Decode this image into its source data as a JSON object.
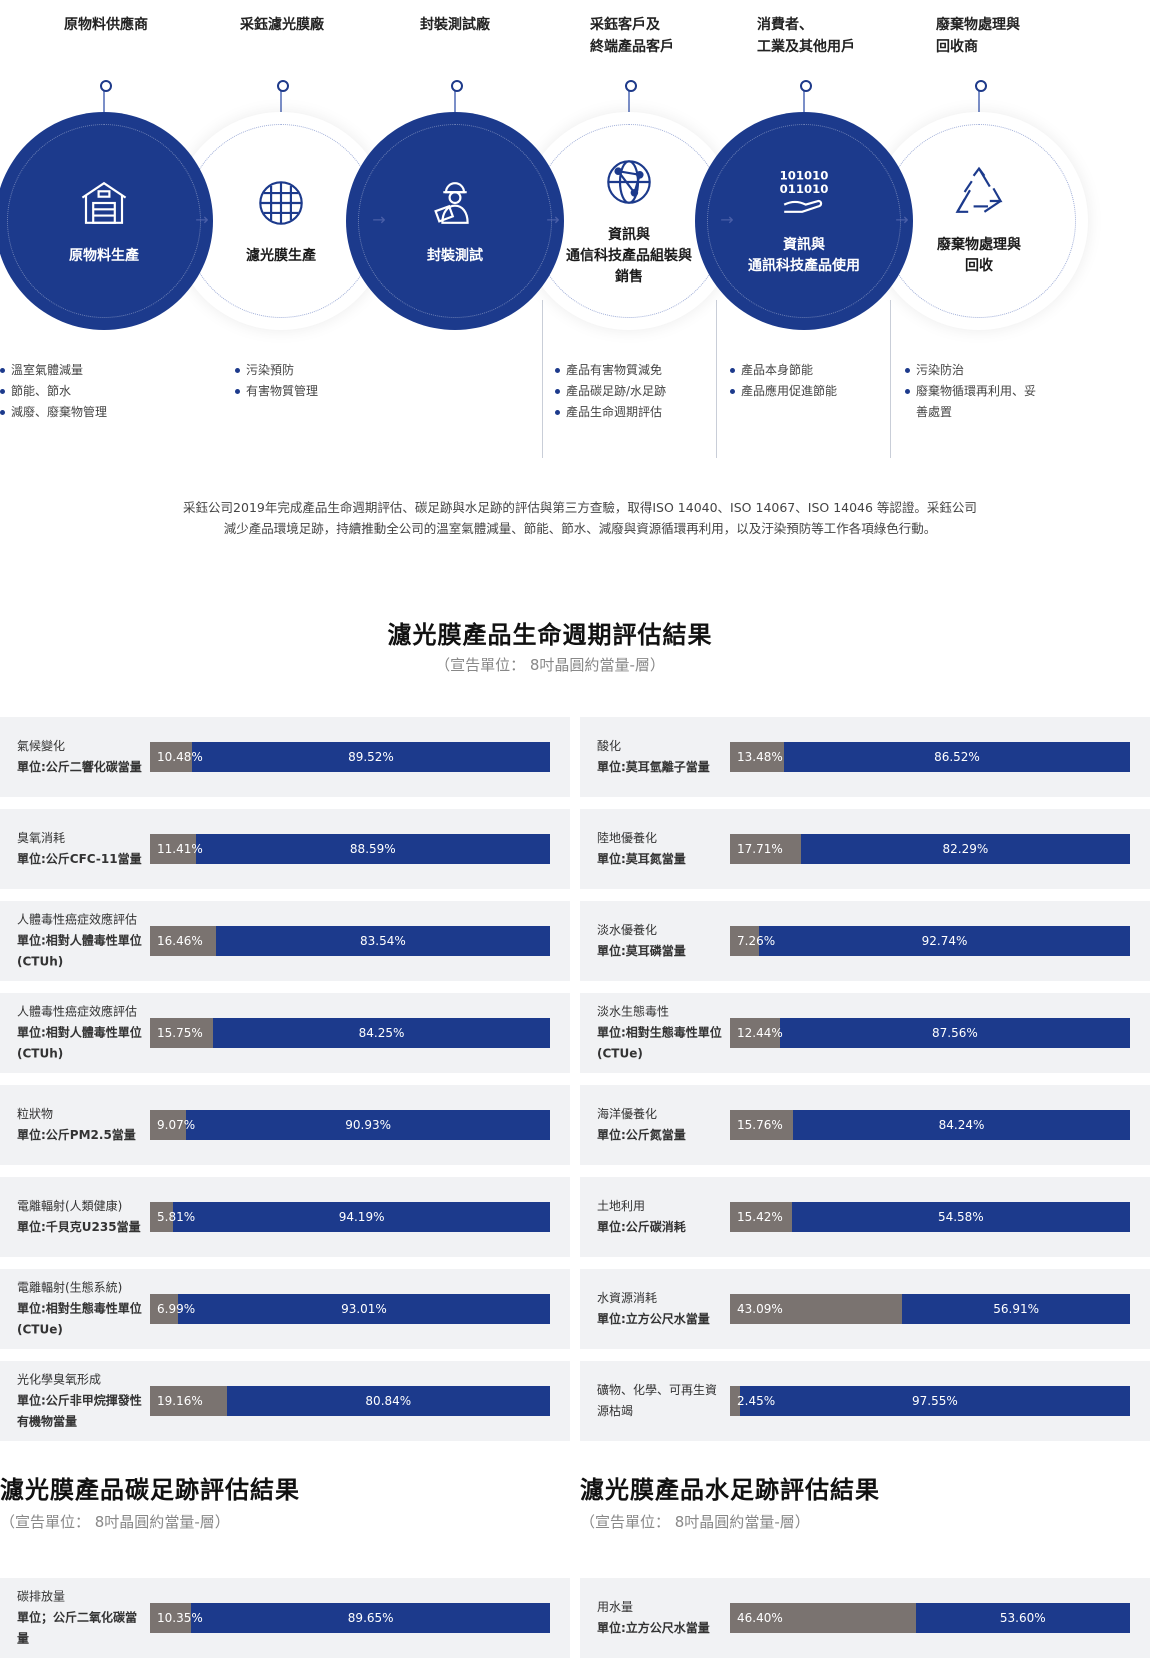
{
  "chain": {
    "stages": [
      {
        "title": "原物料供應商",
        "circle": "原物料生產",
        "style": "dark",
        "icon": "warehouse-icon",
        "bullets": [
          "溫室氣體減量",
          "節能、節水",
          "減廢、廢棄物管理"
        ]
      },
      {
        "title": "采鈺濾光膜廠",
        "circle": "濾光膜生產",
        "style": "light",
        "icon": "grid-globe-icon",
        "bullets": [
          "污染預防",
          "有害物質管理"
        ]
      },
      {
        "title": "封裝測試廠",
        "circle": "封裝測試",
        "style": "dark",
        "icon": "worker-icon",
        "bullets": []
      },
      {
        "title": "采鈺客戶及\n終端產品客戶",
        "circle": "資訊與\n通信科技產品組裝與\n銷售",
        "style": "light",
        "icon": "network-globe-icon",
        "bullets": [
          "產品有害物質減免",
          "產品碳足跡/水足跡",
          "產品生命週期評估"
        ]
      },
      {
        "title": "消費者、\n工業及其他用戶",
        "circle": "資訊與\n通訊科技產品使用",
        "style": "dark",
        "icon": "binary-hand-icon",
        "icon_text": [
          "101010",
          "011010"
        ],
        "bullets": [
          "產品本身節能",
          "產品應用促進節能"
        ]
      },
      {
        "title": "廢棄物處理與\n回收商",
        "circle": "廢棄物處理與\n回收",
        "style": "light",
        "icon": "recycle-icon",
        "bullets": [
          "污染防治",
          "廢棄物循環再利用、妥\n善處置"
        ]
      }
    ],
    "arrow": "→"
  },
  "intro": {
    "line1": "采鈺公司2019年完成產品生命週期評估、碳足跡與水足跡的評估與第三方查驗，取得ISO 14040、ISO 14067、ISO 14046 等認證。采鈺公司",
    "line2": "減少產品環境足跡，持續推動全公司的溫室氣體減量、節能、節水、減廢與資源循環再利用，以及汙染預防等工作各項綠色行動。"
  },
  "lca": {
    "title": "濾光膜產品生命週期評估結果",
    "subtitle": "（宣告單位： 8吋晶圓約當量-層）"
  },
  "carbon": {
    "title": "濾光膜產品碳足跡評估結果",
    "subtitle": "（宣告單位： 8吋晶圓約當量-層）"
  },
  "water": {
    "title": "濾光膜產品水足跡評估結果",
    "subtitle": "（宣告單位： 8吋晶圓約當量-層）"
  },
  "colors": {
    "primary": "#1c3a8c",
    "grey_segment": "#7a7370",
    "card_bg": "#f1f2f4"
  },
  "chart_data": [
    {
      "type": "bar",
      "stacked": true,
      "orientation": "horizontal",
      "title": "濾光膜產品生命週期評估結果",
      "categories_left": [
        {
          "label": "氣候變化",
          "unit": "單位:公斤二響化碳當量",
          "values": [
            10.48,
            89.52
          ]
        },
        {
          "label": "臭氧消耗",
          "unit": "單位:公斤CFC-11當量",
          "values": [
            11.41,
            88.59
          ]
        },
        {
          "label": "人體毒性癌症效應評估",
          "unit": "單位:相對人體毒性單位(CTUh)",
          "values": [
            16.46,
            83.54
          ]
        },
        {
          "label": "人體毒性癌症效應評估",
          "unit": "單位:相對人體毒性單位(CTUh)",
          "values": [
            15.75,
            84.25
          ]
        },
        {
          "label": "粒狀物",
          "unit": "單位:公斤PM2.5當量",
          "values": [
            9.07,
            90.93
          ]
        },
        {
          "label": "電離輻射(人類健康)",
          "unit": "單位:千貝克U235當量",
          "values": [
            5.81,
            94.19
          ]
        },
        {
          "label": "電離輻射(生態系統)",
          "unit": "單位:相對生態毒性單位(CTUe)",
          "values": [
            6.99,
            93.01
          ]
        },
        {
          "label": "光化學臭氧形成",
          "unit": "單位:公斤非甲烷揮發性有機物當量",
          "values": [
            19.16,
            80.84
          ]
        }
      ],
      "categories_right": [
        {
          "label": "酸化",
          "unit": "單位:莫耳氫離子當量",
          "values": [
            13.48,
            86.52
          ]
        },
        {
          "label": "陸地優養化",
          "unit": "單位:莫耳氮當量",
          "values": [
            17.71,
            82.29
          ]
        },
        {
          "label": "淡水優養化",
          "unit": "單位:莫耳磷當量",
          "values": [
            7.26,
            92.74
          ]
        },
        {
          "label": "淡水生態毒性",
          "unit": "單位:相對生態毒性單位(CTUe)",
          "values": [
            12.44,
            87.56
          ]
        },
        {
          "label": "海洋優養化",
          "unit": "單位:公斤氮當量",
          "values": [
            15.76,
            84.24
          ]
        },
        {
          "label": "土地利用",
          "unit": "單位:公斤碳消耗",
          "values": [
            15.42,
            54.58
          ]
        },
        {
          "label": "水資源消耗",
          "unit": "單位:立方公尺水當量",
          "values": [
            43.09,
            56.91
          ]
        },
        {
          "label": "礦物、化學、可再生資源枯竭",
          "unit": "",
          "values": [
            2.45,
            97.55
          ]
        }
      ]
    },
    {
      "type": "bar",
      "stacked": true,
      "orientation": "horizontal",
      "title": "濾光膜產品碳足跡評估結果",
      "categories_left": [
        {
          "label": "碳排放量",
          "unit": "單位；公斤二氧化碳當量",
          "values": [
            10.35,
            89.65
          ]
        }
      ]
    },
    {
      "type": "bar",
      "stacked": true,
      "orientation": "horizontal",
      "title": "濾光膜產品水足跡評估結果",
      "categories_right": [
        {
          "label": "用水量",
          "unit": "單位:立方公尺水當量",
          "values": [
            46.4,
            53.6
          ],
          "labels": [
            "46.40%",
            "53.60%"
          ]
        }
      ]
    }
  ]
}
